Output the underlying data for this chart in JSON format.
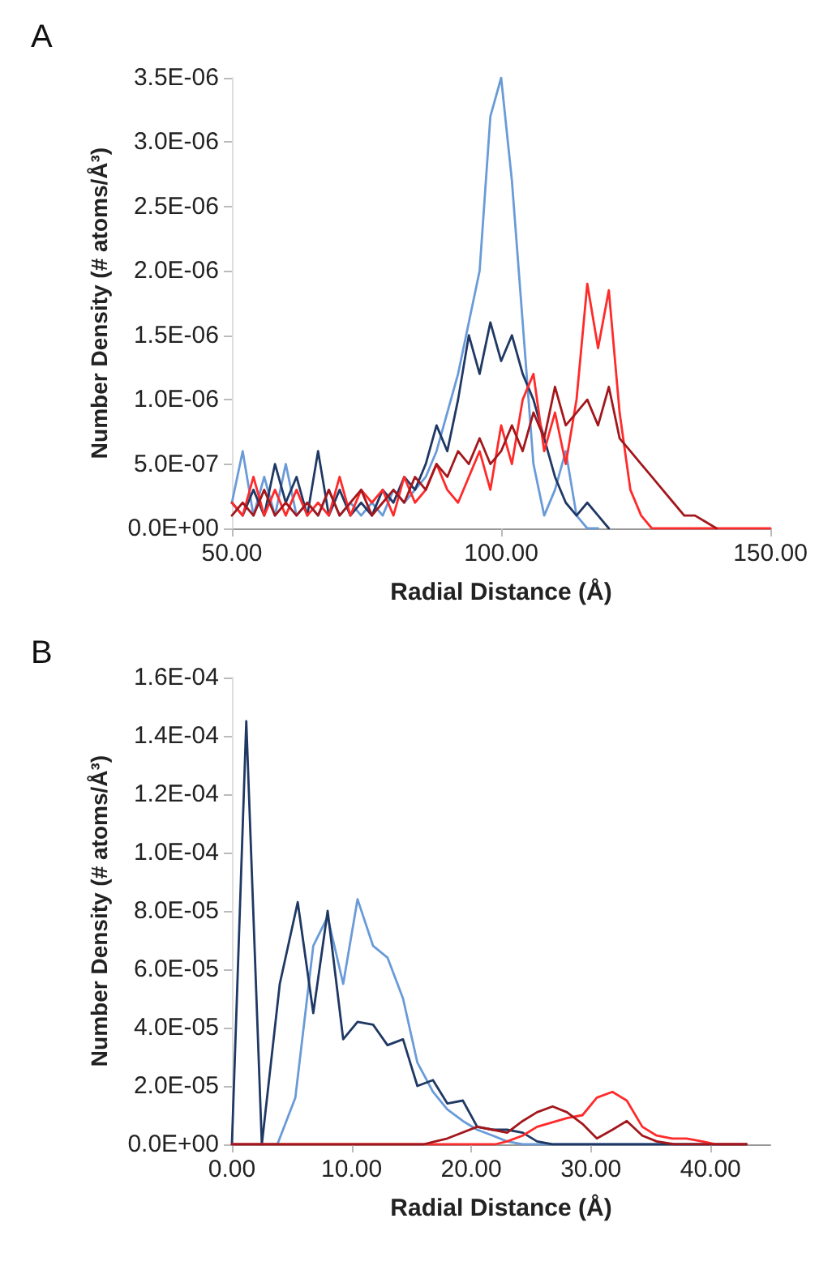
{
  "chart_data": [
    {
      "type": "line",
      "title": "A",
      "xlabel": "Radial Distance (Å)",
      "ylabel": "Number Density (# atoms/Å³)",
      "xlim": [
        50,
        150
      ],
      "xticks": [
        {
          "value": 50,
          "label": "50.00"
        },
        {
          "value": 100,
          "label": "100.00"
        },
        {
          "value": 150,
          "label": "150.00"
        }
      ],
      "ylim": [
        0,
        3.5e-06
      ],
      "yticks": [
        {
          "value": 0,
          "label": "0.0E+00"
        },
        {
          "value": 5e-07,
          "label": "5.0E-07"
        },
        {
          "value": 1e-06,
          "label": "1.0E-06"
        },
        {
          "value": 1.5e-06,
          "label": "1.5E-06"
        },
        {
          "value": 2e-06,
          "label": "2.0E-06"
        },
        {
          "value": 2.5e-06,
          "label": "2.5E-06"
        },
        {
          "value": 3e-06,
          "label": "3.0E-06"
        },
        {
          "value": 3.5e-06,
          "label": "3.5E-06"
        }
      ],
      "grid": false,
      "marker": "none",
      "line_style": "solid",
      "series": [
        {
          "color": "#6a9bd8",
          "x": [
            50,
            52,
            54,
            56,
            58,
            60,
            62,
            64,
            66,
            68,
            70,
            72,
            74,
            76,
            78,
            80,
            82,
            84,
            86,
            88,
            90,
            92,
            94,
            96,
            98,
            100,
            102,
            104,
            106,
            108,
            110,
            112,
            114,
            116,
            118
          ],
          "values": [
            2e-07,
            6e-07,
            1e-07,
            4e-07,
            1e-07,
            5e-07,
            1e-07,
            2e-07,
            1e-07,
            3e-07,
            1e-07,
            2e-07,
            1e-07,
            2e-07,
            1e-07,
            3e-07,
            2e-07,
            3e-07,
            4e-07,
            6e-07,
            9e-07,
            1.2e-06,
            1.6e-06,
            2e-06,
            3.2e-06,
            3.5e-06,
            2.7e-06,
            1.6e-06,
            5e-07,
            1e-07,
            3e-07,
            6e-07,
            1e-07,
            0,
            0
          ]
        },
        {
          "color": "#1f3864",
          "x": [
            50,
            52,
            54,
            56,
            58,
            60,
            62,
            64,
            66,
            68,
            70,
            72,
            74,
            76,
            78,
            80,
            82,
            84,
            86,
            88,
            90,
            92,
            94,
            96,
            98,
            100,
            102,
            104,
            106,
            108,
            110,
            112,
            114,
            116,
            118,
            120
          ],
          "values": [
            2e-07,
            1e-07,
            3e-07,
            1e-07,
            5e-07,
            2e-07,
            4e-07,
            1e-07,
            6e-07,
            1e-07,
            3e-07,
            1e-07,
            2e-07,
            1e-07,
            3e-07,
            2e-07,
            4e-07,
            3e-07,
            5e-07,
            8e-07,
            6e-07,
            1e-06,
            1.5e-06,
            1.2e-06,
            1.6e-06,
            1.3e-06,
            1.5e-06,
            1.2e-06,
            1e-06,
            7e-07,
            4e-07,
            2e-07,
            1e-07,
            2e-07,
            1e-07,
            0
          ]
        },
        {
          "color": "#ff2a2a",
          "x": [
            50,
            52,
            54,
            56,
            58,
            60,
            62,
            64,
            66,
            68,
            70,
            72,
            74,
            76,
            78,
            80,
            82,
            84,
            86,
            88,
            90,
            92,
            94,
            96,
            98,
            100,
            102,
            104,
            106,
            108,
            110,
            112,
            114,
            116,
            118,
            120,
            122,
            124,
            126,
            128,
            150
          ],
          "values": [
            2e-07,
            1e-07,
            4e-07,
            1e-07,
            3e-07,
            1e-07,
            3e-07,
            1e-07,
            2e-07,
            1e-07,
            4e-07,
            1e-07,
            3e-07,
            2e-07,
            3e-07,
            1e-07,
            4e-07,
            2e-07,
            3e-07,
            5e-07,
            3e-07,
            2e-07,
            4e-07,
            6e-07,
            3e-07,
            8e-07,
            5e-07,
            1e-06,
            1.2e-06,
            6e-07,
            9e-07,
            5e-07,
            1e-06,
            1.9e-06,
            1.4e-06,
            1.85e-06,
            9e-07,
            3e-07,
            1e-07,
            0,
            0
          ]
        },
        {
          "color": "#a3171c",
          "x": [
            50,
            52,
            54,
            56,
            58,
            60,
            62,
            64,
            66,
            68,
            70,
            72,
            74,
            76,
            78,
            80,
            82,
            84,
            86,
            88,
            90,
            92,
            94,
            96,
            98,
            100,
            102,
            104,
            106,
            108,
            110,
            112,
            114,
            116,
            118,
            120,
            122,
            124,
            126,
            128,
            130,
            132,
            134,
            136,
            138,
            140
          ],
          "values": [
            1e-07,
            2e-07,
            1e-07,
            3e-07,
            1e-07,
            2e-07,
            1e-07,
            2e-07,
            1e-07,
            3e-07,
            1e-07,
            2e-07,
            3e-07,
            1e-07,
            2e-07,
            3e-07,
            2e-07,
            4e-07,
            3e-07,
            5e-07,
            4e-07,
            6e-07,
            5e-07,
            7e-07,
            5e-07,
            6e-07,
            8e-07,
            6e-07,
            9e-07,
            7e-07,
            1.1e-06,
            8e-07,
            9e-07,
            1e-06,
            8e-07,
            1.1e-06,
            7e-07,
            6e-07,
            5e-07,
            4e-07,
            3e-07,
            2e-07,
            1e-07,
            1e-07,
            5e-08,
            0
          ]
        }
      ]
    },
    {
      "type": "line",
      "title": "B",
      "xlabel": "Radial Distance (Å)",
      "ylabel": "Number Density (# atoms/Å³)",
      "xlim": [
        0,
        45
      ],
      "xticks": [
        {
          "value": 0,
          "label": "0.00"
        },
        {
          "value": 10,
          "label": "10.00"
        },
        {
          "value": 20,
          "label": "20.00"
        },
        {
          "value": 30,
          "label": "30.00"
        },
        {
          "value": 40,
          "label": "40.00"
        }
      ],
      "ylim": [
        0,
        0.00016
      ],
      "yticks": [
        {
          "value": 0,
          "label": "0.0E+00"
        },
        {
          "value": 2e-05,
          "label": "2.0E-05"
        },
        {
          "value": 4e-05,
          "label": "4.0E-05"
        },
        {
          "value": 6e-05,
          "label": "6.0E-05"
        },
        {
          "value": 8e-05,
          "label": "8.0E-05"
        },
        {
          "value": 0.0001,
          "label": "1.0E-04"
        },
        {
          "value": 0.00012,
          "label": "1.2E-04"
        },
        {
          "value": 0.00014,
          "label": "1.4E-04"
        },
        {
          "value": 0.00016,
          "label": "1.6E-04"
        }
      ],
      "grid": false,
      "marker": "none",
      "line_style": "solid",
      "series": [
        {
          "color": "#6a9bd8",
          "x": [
            0,
            2.5,
            3.8,
            5.3,
            6.8,
            8,
            9.3,
            10.5,
            11.8,
            13,
            14.3,
            15.5,
            16.8,
            18,
            19.3,
            20.5,
            21.8,
            23,
            24.3,
            43
          ],
          "values": [
            0,
            0,
            0,
            1.6e-05,
            6.8e-05,
            7.8e-05,
            5.5e-05,
            8.4e-05,
            6.8e-05,
            6.4e-05,
            5e-05,
            2.8e-05,
            1.8e-05,
            1.2e-05,
            8e-06,
            5e-06,
            3e-06,
            1e-06,
            0,
            0
          ]
        },
        {
          "color": "#1f3864",
          "x": [
            0,
            1.2,
            2.5,
            4,
            5.5,
            6.8,
            8,
            9.3,
            10.5,
            11.8,
            13,
            14.3,
            15.5,
            16.8,
            18,
            19.3,
            20.5,
            21.8,
            23,
            24.3,
            25.5,
            26.8,
            43
          ],
          "values": [
            0,
            0.000145,
            0,
            5.5e-05,
            8.3e-05,
            4.5e-05,
            8e-05,
            3.6e-05,
            4.2e-05,
            4.1e-05,
            3.4e-05,
            3.6e-05,
            2e-05,
            2.2e-05,
            1.4e-05,
            1.5e-05,
            6e-06,
            5e-06,
            5e-06,
            4e-06,
            1e-06,
            0,
            0
          ]
        },
        {
          "color": "#ff2a2a",
          "x": [
            0,
            22,
            23,
            24.3,
            25.5,
            28,
            29.3,
            30.5,
            31.8,
            33,
            34.3,
            35.5,
            36.8,
            38,
            39.3,
            40.5,
            43
          ],
          "values": [
            0,
            0,
            1e-06,
            3e-06,
            6e-06,
            9e-06,
            1e-05,
            1.6e-05,
            1.8e-05,
            1.5e-05,
            6e-06,
            3e-06,
            2e-06,
            2e-06,
            1e-06,
            0,
            0
          ]
        },
        {
          "color": "#a3171c",
          "x": [
            0,
            16,
            17,
            18,
            20.5,
            21.8,
            23,
            24.3,
            25.5,
            26.8,
            28,
            29.3,
            30.5,
            31.8,
            33,
            34.3,
            35.5,
            37,
            43
          ],
          "values": [
            0,
            0,
            1e-06,
            2e-06,
            6e-06,
            5e-06,
            4e-06,
            8e-06,
            1.1e-05,
            1.3e-05,
            1.1e-05,
            7e-06,
            2e-06,
            5e-06,
            8e-06,
            3e-06,
            1e-06,
            0,
            0
          ]
        }
      ]
    }
  ]
}
